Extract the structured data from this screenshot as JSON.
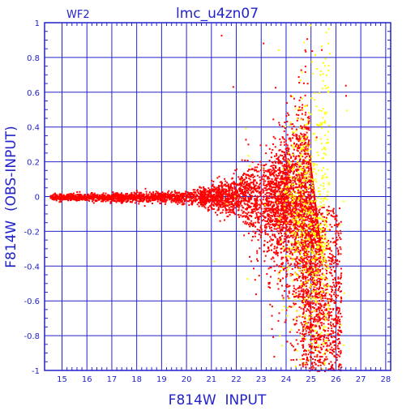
{
  "chart_data": {
    "type": "scatter",
    "title": "lmc_u4zn07",
    "corner_label": "WF2",
    "xlabel": "F814W  INPUT",
    "ylabel": "F814W  (OBS-INPUT)",
    "xlim": [
      14.3,
      28.2
    ],
    "ylim": [
      -1,
      1
    ],
    "x_ticks": [
      15,
      16,
      17,
      18,
      19,
      20,
      21,
      22,
      23,
      24,
      25,
      26,
      27,
      28
    ],
    "y_ticks": [
      -1,
      -0.8,
      -0.6,
      -0.4,
      -0.2,
      0,
      0.2,
      0.4,
      0.6,
      0.8,
      1
    ],
    "grid": true,
    "series": [
      {
        "color": "#ff0000",
        "description_points": [
          [
            14.5,
            0.0
          ],
          [
            15.0,
            0.01
          ],
          [
            16.0,
            0.0
          ],
          [
            17.0,
            0.01
          ],
          [
            18.0,
            0.0
          ],
          [
            19.0,
            0.0
          ],
          [
            20.0,
            0.0
          ],
          [
            21.0,
            0.0
          ],
          [
            22.0,
            0.0
          ],
          [
            23.0,
            0.0
          ],
          [
            24.0,
            0.0
          ],
          [
            25.0,
            0.0
          ],
          [
            24.5,
            0.6
          ],
          [
            25.8,
            -0.95
          ],
          [
            23.0,
            -0.5
          ]
        ]
      },
      {
        "color": "#ffff00",
        "description_points": [
          [
            24.5,
            0.35
          ],
          [
            24.8,
            0.2
          ],
          [
            25.0,
            -0.3
          ],
          [
            25.5,
            -0.6
          ],
          [
            26.5,
            -0.65
          ],
          [
            23.5,
            -0.7
          ],
          [
            24.0,
            0.95
          ],
          [
            25.5,
            0.97
          ]
        ]
      }
    ],
    "colors": {
      "axis": "#2222cc",
      "grid": "#2222cc",
      "red_points": "#ff0000",
      "yellow_points": "#ffff00"
    }
  }
}
